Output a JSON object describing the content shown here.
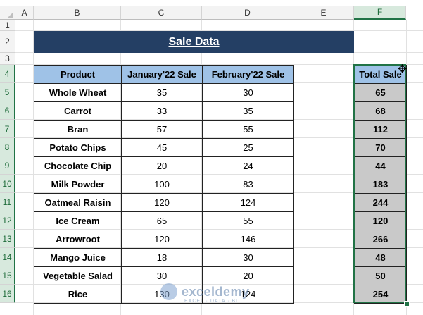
{
  "columns": [
    "A",
    "B",
    "C",
    "D",
    "E",
    "F"
  ],
  "rows": [
    "1",
    "2",
    "3",
    "4",
    "5",
    "6",
    "7",
    "8",
    "9",
    "10",
    "11",
    "12",
    "13",
    "14",
    "15",
    "16"
  ],
  "sheet_title": "Sale Data",
  "table": {
    "headers": [
      "Product",
      "January'22 Sale",
      "February'22 Sale"
    ],
    "rows": [
      {
        "product": "Whole Wheat",
        "jan": "35",
        "feb": "30"
      },
      {
        "product": "Carrot",
        "jan": "33",
        "feb": "35"
      },
      {
        "product": "Bran",
        "jan": "57",
        "feb": "55"
      },
      {
        "product": "Potato Chips",
        "jan": "45",
        "feb": "25"
      },
      {
        "product": "Chocolate Chip",
        "jan": "20",
        "feb": "24"
      },
      {
        "product": "Milk Powder",
        "jan": "100",
        "feb": "83"
      },
      {
        "product": "Oatmeal Raisin",
        "jan": "120",
        "feb": "124"
      },
      {
        "product": "Ice Cream",
        "jan": "65",
        "feb": "55"
      },
      {
        "product": "Arrowroot",
        "jan": "120",
        "feb": "146"
      },
      {
        "product": "Mango Juice",
        "jan": "18",
        "feb": "30"
      },
      {
        "product": "Vegetable Salad",
        "jan": "30",
        "feb": "20"
      },
      {
        "product": "Rice",
        "jan": "130",
        "feb": "124"
      }
    ]
  },
  "total": {
    "header": "Total Sale",
    "values": [
      "65",
      "68",
      "112",
      "70",
      "44",
      "183",
      "244",
      "120",
      "266",
      "48",
      "50",
      "254"
    ]
  },
  "selected_column": "F",
  "watermark": {
    "name": "exceldemy",
    "tagline": "EXCEL · DATA · BI"
  },
  "colors": {
    "title_bg": "#243f64",
    "header_bg": "#9fc2e7",
    "total_bg": "#c9c9c9",
    "selection": "#217346"
  }
}
